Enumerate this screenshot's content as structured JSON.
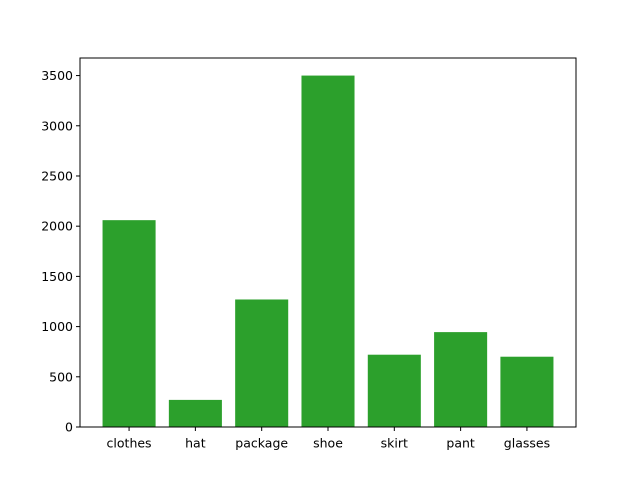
{
  "chart_data": {
    "type": "bar",
    "categories": [
      "clothes",
      "hat",
      "package",
      "shoe",
      "skirt",
      "pant",
      "glasses"
    ],
    "values": [
      2060,
      270,
      1270,
      3500,
      720,
      945,
      700
    ],
    "ylim": [
      0,
      3675
    ],
    "yticks": [
      0,
      500,
      1000,
      1500,
      2000,
      2500,
      3000,
      3500
    ],
    "bar_color": "#2ca02c",
    "title": "",
    "xlabel": "",
    "ylabel": "",
    "grid": false
  }
}
